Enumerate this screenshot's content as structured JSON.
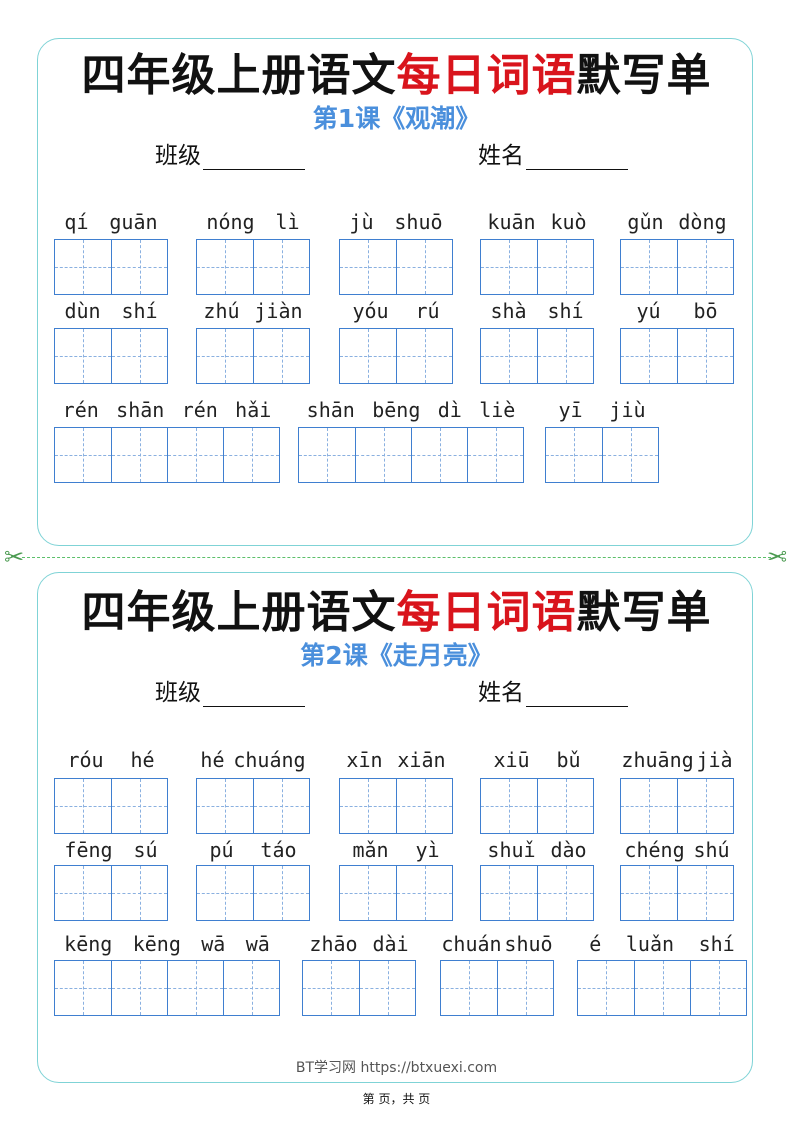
{
  "sheets": [
    {
      "title_black_1": "四年级上册语文",
      "title_red": "每日词语",
      "title_black_2": "默写单",
      "subtitle": "第1课《观潮》",
      "class_label": "班级",
      "name_label": "姓名",
      "words": [
        [
          "qí",
          "guān"
        ],
        [
          "nóng",
          "lì"
        ],
        [
          "jù",
          "shuō"
        ],
        [
          "kuān",
          "kuò"
        ],
        [
          "gǔn",
          "dòng"
        ],
        [
          "dùn",
          "shí"
        ],
        [
          "zhú",
          "jiàn"
        ],
        [
          "yóu",
          "rú"
        ],
        [
          "shà",
          "shí"
        ],
        [
          "yú",
          "bō"
        ],
        [
          "rén",
          "shān",
          "rén",
          "hǎi"
        ],
        [
          "shān",
          "bēng",
          "dì",
          "liè"
        ],
        [
          "yī",
          "jiù"
        ]
      ]
    },
    {
      "title_black_1": "四年级上册语文",
      "title_red": "每日词语",
      "title_black_2": "默写单",
      "subtitle": "第2课《走月亮》",
      "class_label": "班级",
      "name_label": "姓名",
      "words": [
        [
          "róu",
          "hé"
        ],
        [
          "hé",
          "chuáng"
        ],
        [
          "xīn",
          "xiān"
        ],
        [
          "xiū",
          "bǔ"
        ],
        [
          "zhuāng",
          "jià"
        ],
        [
          "fēng",
          "sú"
        ],
        [
          "pú",
          "táo"
        ],
        [
          "mǎn",
          "yì"
        ],
        [
          "shuǐ",
          "dào"
        ],
        [
          "chéng",
          "shú"
        ],
        [
          "kēng",
          "kēng",
          "wā",
          "wā"
        ],
        [
          "zhāo",
          "dài"
        ],
        [
          "chuán",
          "shuō"
        ],
        [
          "é",
          "luǎn",
          "shí"
        ]
      ]
    }
  ],
  "cut_line_icon": "scissors-icon",
  "watermark": "BT学习网 https://btxuexi.com",
  "page_footer": "第   页，共   页",
  "colors": {
    "title_red": "#d9141c",
    "subtitle_blue": "#4a8fdc",
    "box_blue": "#3f7fd0",
    "card_border": "#7fd3d6"
  }
}
